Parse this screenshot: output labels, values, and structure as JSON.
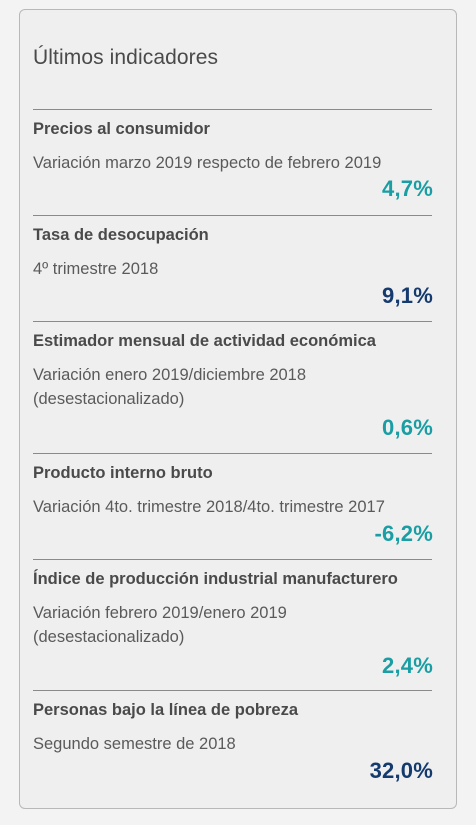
{
  "panel": {
    "title": "Últimos indicadores"
  },
  "indicators": [
    {
      "name": "Precios al consumidor",
      "description": "Variación marzo 2019 respecto de febrero 2019",
      "value": "4,7%",
      "value_color": "#1a9ea3"
    },
    {
      "name": "Tasa de desocupación",
      "description": "4º trimestre 2018",
      "value": "9,1%",
      "value_color": "#143a6e"
    },
    {
      "name": "Estimador mensual de actividad económica",
      "description": "Variación enero 2019/diciembre 2018 (desestacionalizado)",
      "value": "0,6%",
      "value_color": "#1a9ea3"
    },
    {
      "name": "Producto interno bruto",
      "description": "Variación 4to. trimestre 2018/4to. trimestre 2017",
      "value": "-6,2%",
      "value_color": "#1a9ea3"
    },
    {
      "name": "Índice de producción industrial manufacturero",
      "description": "Variación febrero 2019/enero 2019 (desestacionalizado)",
      "value": "2,4%",
      "value_color": "#1a9ea3"
    },
    {
      "name": "Personas bajo la línea de pobreza",
      "description": "Segundo semestre de 2018",
      "value": "32,0%",
      "value_color": "#143a6e"
    }
  ]
}
